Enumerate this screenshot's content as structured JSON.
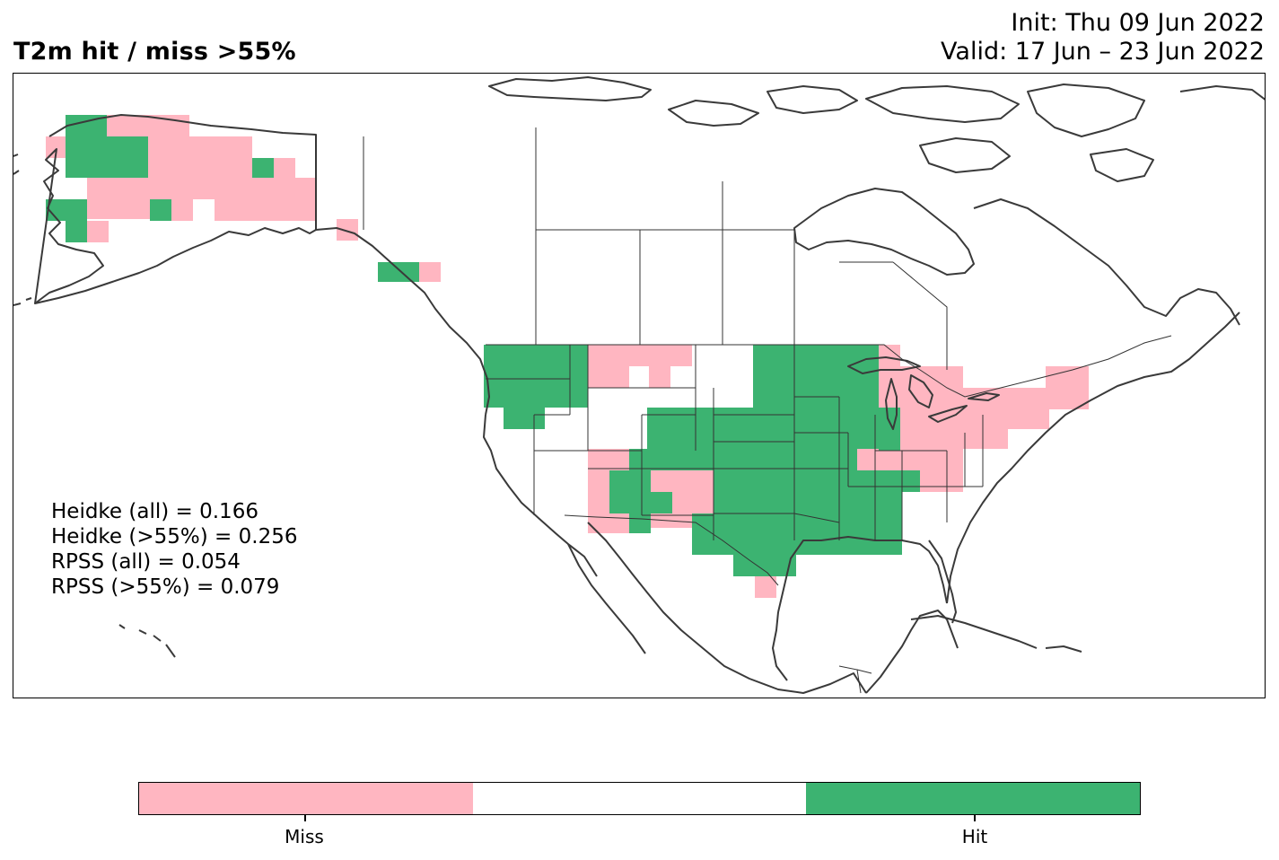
{
  "header": {
    "title": "T2m hit / miss  >55%",
    "init_line": "Init: Thu 09 Jun 2022",
    "valid_line": "Valid: 17 Jun – 23 Jun 2022"
  },
  "map": {
    "region": "North America",
    "projection": "PlateCarree",
    "coastline_color": "#3a3a3a",
    "border_color": "#333333",
    "cell_categories": {
      "hit": "Alaska west coast, Alaska southeast panhandle, Washington, Oregon, western Montana, Nevada-Utah strip, Colorado, Arizona, New Mexico edge, Dakotas east, Minnesota, Wisconsin, Iowa, Nebraska, Kansas, Missouri, Illinois, Oklahoma, Texas, Arkansas, Louisiana, Mississippi, Alabama, Tennessee, Indiana",
      "miss": "interior Alaska, Yukon border, central Montana, southern Arizona, New Mexico, Michigan, Ohio, Kentucky, Pennsylvania, New York, New England, Virginia, south Texas tip"
    }
  },
  "stats": [
    "Heidke (all) = 0.166",
    "Heidke (>55%) = 0.256",
    "RPSS (all) = 0.054",
    "RPSS (>55%) = 0.079"
  ],
  "colorbar": {
    "colors": [
      "#ffb6c1",
      "#ffffff",
      "#3cb371"
    ],
    "labels": [
      "Miss",
      "Hit"
    ]
  },
  "colors": {
    "miss": "#ffb6c1",
    "neutral": "#ffffff",
    "hit": "#3cb371"
  }
}
